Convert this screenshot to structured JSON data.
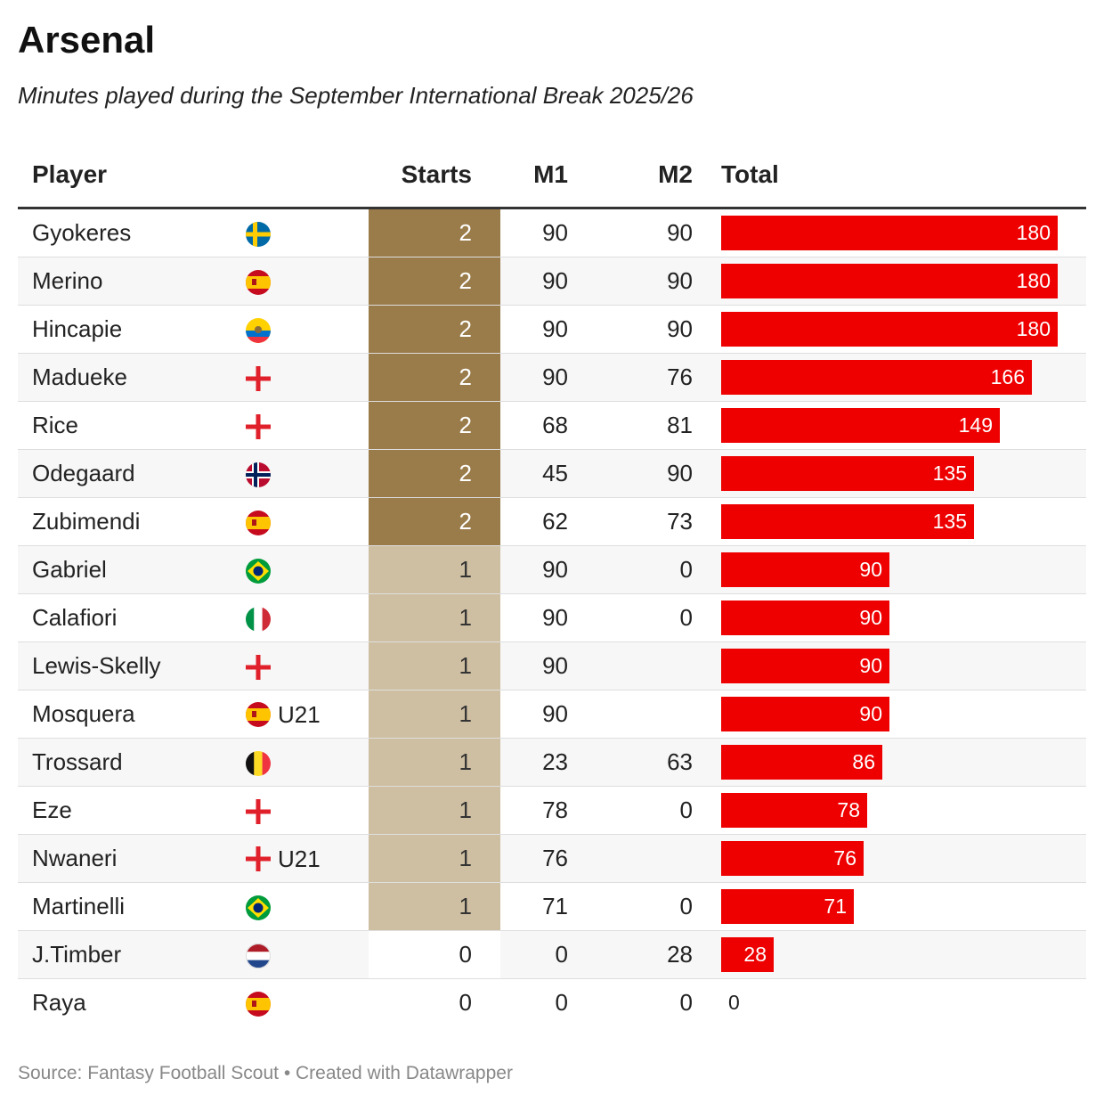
{
  "title": "Arsenal",
  "subtitle": "Minutes played during the September International Break 2025/26",
  "source": "Source: Fantasy Football Scout • Created with Datawrapper",
  "colors": {
    "bar": "#ee0000",
    "starts_2": "#9a7b4a",
    "starts_1": "#cfbfa2",
    "starts_0": "#ffffff"
  },
  "chart_data": {
    "type": "table",
    "columns": [
      "Player",
      "Starts",
      "M1",
      "M2",
      "Total"
    ],
    "total_max": 180,
    "rows": [
      {
        "player": "Gyokeres",
        "flag": "sweden-flag-icon",
        "tag": "",
        "starts": "2",
        "m1": "90",
        "m2": "90",
        "total": 180
      },
      {
        "player": "Merino",
        "flag": "spain-flag-icon",
        "tag": "",
        "starts": "2",
        "m1": "90",
        "m2": "90",
        "total": 180
      },
      {
        "player": "Hincapie",
        "flag": "ecuador-flag-icon",
        "tag": "",
        "starts": "2",
        "m1": "90",
        "m2": "90",
        "total": 180
      },
      {
        "player": "Madueke",
        "flag": "england-flag-icon",
        "tag": "",
        "starts": "2",
        "m1": "90",
        "m2": "76",
        "total": 166
      },
      {
        "player": "Rice",
        "flag": "england-flag-icon",
        "tag": "",
        "starts": "2",
        "m1": "68",
        "m2": "81",
        "total": 149
      },
      {
        "player": "Odegaard",
        "flag": "norway-flag-icon",
        "tag": "",
        "starts": "2",
        "m1": "45",
        "m2": "90",
        "total": 135
      },
      {
        "player": "Zubimendi",
        "flag": "spain-flag-icon",
        "tag": "",
        "starts": "2",
        "m1": "62",
        "m2": "73",
        "total": 135
      },
      {
        "player": "Gabriel",
        "flag": "brazil-flag-icon",
        "tag": "",
        "starts": "1",
        "m1": "90",
        "m2": "0",
        "total": 90
      },
      {
        "player": "Calafiori",
        "flag": "italy-flag-icon",
        "tag": "",
        "starts": "1",
        "m1": "90",
        "m2": "0",
        "total": 90
      },
      {
        "player": "Lewis-Skelly",
        "flag": "england-flag-icon",
        "tag": "",
        "starts": "1",
        "m1": "90",
        "m2": "",
        "total": 90
      },
      {
        "player": "Mosquera",
        "flag": "spain-flag-icon",
        "tag": "U21",
        "starts": "1",
        "m1": "90",
        "m2": "",
        "total": 90
      },
      {
        "player": "Trossard",
        "flag": "belgium-flag-icon",
        "tag": "",
        "starts": "1",
        "m1": "23",
        "m2": "63",
        "total": 86
      },
      {
        "player": "Eze",
        "flag": "england-flag-icon",
        "tag": "",
        "starts": "1",
        "m1": "78",
        "m2": "0",
        "total": 78
      },
      {
        "player": "Nwaneri",
        "flag": "england-flag-icon",
        "tag": "U21",
        "starts": "1",
        "m1": "76",
        "m2": "",
        "total": 76
      },
      {
        "player": "Martinelli",
        "flag": "brazil-flag-icon",
        "tag": "",
        "starts": "1",
        "m1": "71",
        "m2": "0",
        "total": 71
      },
      {
        "player": "J.Timber",
        "flag": "netherlands-flag-icon",
        "tag": "",
        "starts": "0",
        "m1": "0",
        "m2": "28",
        "total": 28
      },
      {
        "player": "Raya",
        "flag": "spain-flag-icon",
        "tag": "",
        "starts": "0",
        "m1": "0",
        "m2": "0",
        "total": 0
      }
    ]
  }
}
